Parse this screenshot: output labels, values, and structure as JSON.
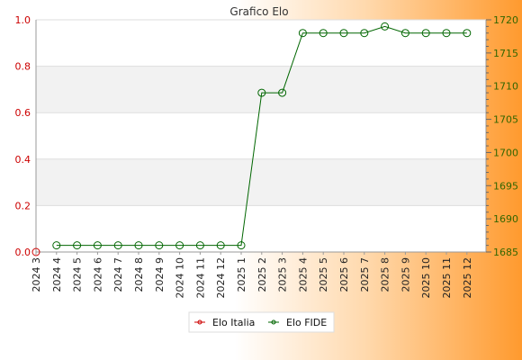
{
  "chart_data": {
    "type": "line",
    "title": "Grafico Elo",
    "categories": [
      "2024 3",
      "2024 4",
      "2024 5",
      "2024 6",
      "2024 7",
      "2024 8",
      "2024 9",
      "2024 10",
      "2024 11",
      "2024 12",
      "2025 1",
      "2025 2",
      "2025 3",
      "2025 4",
      "2025 5",
      "2025 6",
      "2025 7",
      "2025 8",
      "2025 9",
      "2025 10",
      "2025 11",
      "2025 12"
    ],
    "y_left": {
      "ylim": [
        0,
        1
      ],
      "ticks": [
        "0.0",
        "0.2",
        "0.4",
        "0.6",
        "0.8",
        "1.0"
      ],
      "color": "#cc0000"
    },
    "y_right": {
      "ylim": [
        1685,
        1720
      ],
      "ticks": [
        "1685",
        "1690",
        "1695",
        "1700",
        "1705",
        "1710",
        "1715",
        "1720"
      ],
      "color": "#336600"
    },
    "series": [
      {
        "name": "Elo Italia",
        "axis": "left",
        "color": "#cc0000",
        "values": [
          0,
          null,
          null,
          null,
          null,
          null,
          null,
          null,
          null,
          null,
          null,
          null,
          null,
          null,
          null,
          null,
          null,
          null,
          null,
          null,
          null,
          null
        ]
      },
      {
        "name": "Elo FIDE",
        "axis": "right",
        "color": "#006600",
        "values": [
          null,
          1686,
          1686,
          1686,
          1686,
          1686,
          1686,
          1686,
          1686,
          1686,
          1686,
          1709,
          1709,
          1718,
          1718,
          1718,
          1718,
          1719,
          1718,
          1718,
          1718,
          1718
        ]
      }
    ],
    "grid": true,
    "grid_bands": "alternating",
    "legend_placement": "bottom-center"
  }
}
